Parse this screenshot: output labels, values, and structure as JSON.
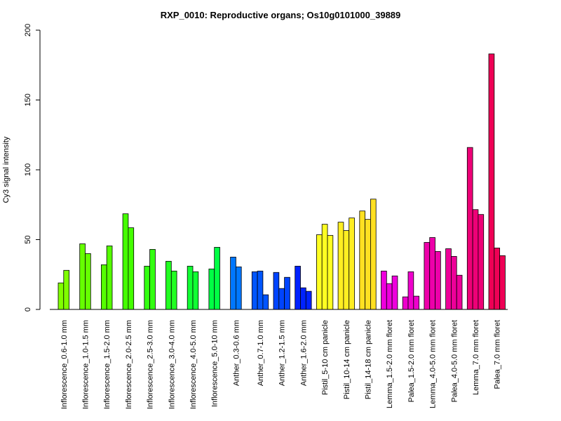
{
  "chart_data": {
    "type": "bar",
    "title": "RXP_0010: Reproductive organs; Os10g0101000_39889",
    "xlabel": "",
    "ylabel": "Cy3 signal intensity",
    "ylim": [
      0,
      200
    ],
    "yticks": [
      0,
      50,
      100,
      150,
      200
    ],
    "grid": false,
    "legend": "none",
    "groups": [
      {
        "label": "Inflorescence_0.6-1.0 mm",
        "color": "#80ff00",
        "values": [
          19,
          28
        ]
      },
      {
        "label": "Inflorescence_1.0-1.5 mm",
        "color": "#66ff00",
        "values": [
          47,
          40
        ]
      },
      {
        "label": "Inflorescence_1.5-2.0 mm",
        "color": "#55ff00",
        "values": [
          32,
          45.5
        ]
      },
      {
        "label": "Inflorescence_2.0-2.5 mm",
        "color": "#44ff00",
        "values": [
          68.5,
          58.5
        ]
      },
      {
        "label": "Inflorescence_2.5-3.0 mm",
        "color": "#33ff11",
        "values": [
          31,
          43
        ]
      },
      {
        "label": "Inflorescence_3.0-4.0 mm",
        "color": "#22ff22",
        "values": [
          34.5,
          27.5
        ]
      },
      {
        "label": "Inflorescence_4.0-5.0 mm",
        "color": "#11ff33",
        "values": [
          31,
          27
        ]
      },
      {
        "label": "Inflorescence_5.0-10 mm",
        "color": "#00ff44",
        "values": [
          29,
          44.5
        ]
      },
      {
        "label": "Anther_0.3-0.6 mm",
        "color": "#0077ff",
        "values": [
          37.5,
          30.5
        ]
      },
      {
        "label": "Anther_0.7-1.0 mm",
        "color": "#0055ff",
        "values": [
          27,
          27.5,
          10.5
        ]
      },
      {
        "label": "Anther_1.2-1.5 mm",
        "color": "#0044ff",
        "values": [
          26.5,
          15,
          23
        ]
      },
      {
        "label": "Anther_1.6-2.0 mm",
        "color": "#0022ff",
        "values": [
          31,
          15.5,
          13
        ]
      },
      {
        "label": "Pistil_5-10 cm panicle",
        "color": "#ffff22",
        "values": [
          53.5,
          61,
          53
        ]
      },
      {
        "label": "Pistil_10-14 cm panicle",
        "color": "#ffee22",
        "values": [
          62.5,
          56.5,
          65.5
        ]
      },
      {
        "label": "Pistil_14-18 cm panicle",
        "color": "#ffe022",
        "values": [
          70.5,
          64.5,
          79
        ]
      },
      {
        "label": "Lemma_1.5-2.0 mm floret",
        "color": "#ee00dd",
        "values": [
          27.5,
          18.5,
          24
        ]
      },
      {
        "label": "Palea_1.5-2.0 mm floret",
        "color": "#ee00cc",
        "values": [
          9,
          27,
          9.5
        ]
      },
      {
        "label": "Lemma_4.0-5.0 mm floret",
        "color": "#ee00aa",
        "values": [
          48,
          51.5,
          41.5
        ]
      },
      {
        "label": "Palea_4.0-5.0 mm floret",
        "color": "#ee0099",
        "values": [
          43.5,
          38,
          24.5
        ]
      },
      {
        "label": "Lemma_7.0 mm floret",
        "color": "#ee0077",
        "values": [
          116,
          71.5,
          68
        ]
      },
      {
        "label": "Palea_7.0 mm floret",
        "color": "#ee0055",
        "values": [
          183,
          44,
          38.5
        ]
      }
    ]
  }
}
